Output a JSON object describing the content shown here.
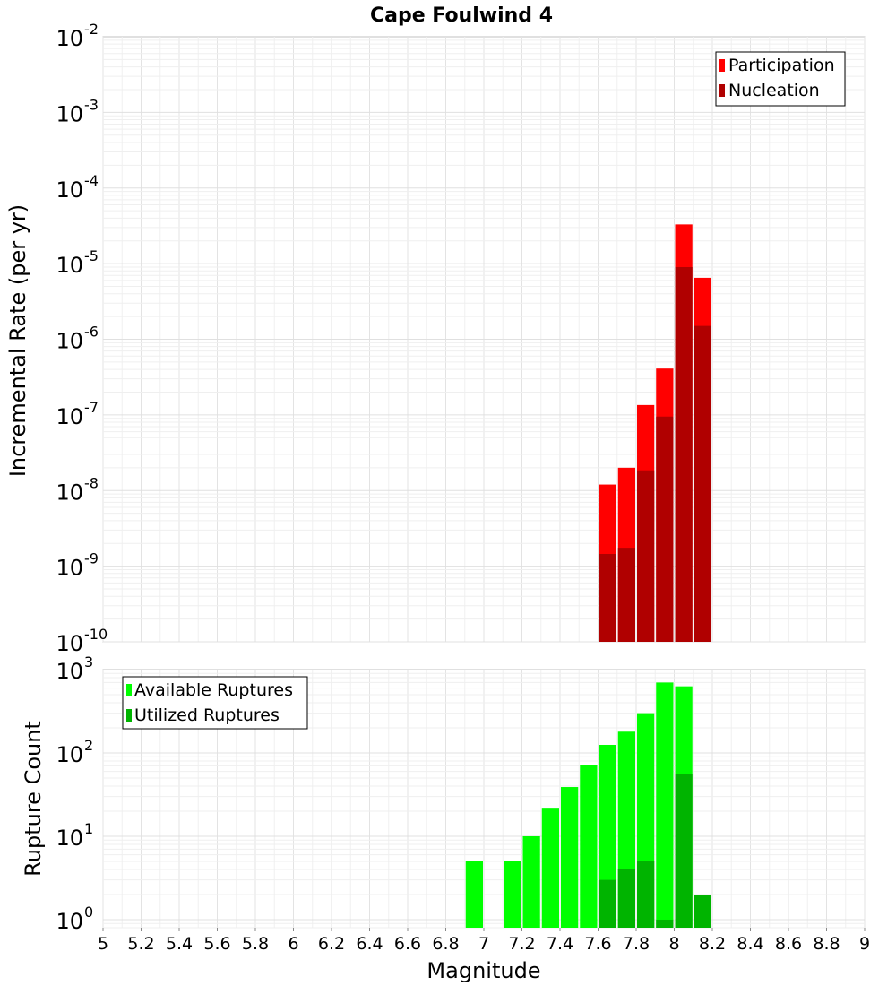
{
  "chart_data": [
    {
      "type": "bar",
      "title": "Cape Foulwind 4",
      "xlabel": "Magnitude",
      "ylabel": "Incremental Rate (per yr)",
      "yscale": "log",
      "xlim": [
        5,
        9
      ],
      "ylim": [
        1e-10,
        0.01
      ],
      "y_ticks": [
        {
          "base": "10",
          "exp": "-10",
          "value": 1e-10
        },
        {
          "base": "10",
          "exp": "-9",
          "value": 1e-09
        },
        {
          "base": "10",
          "exp": "-8",
          "value": 1e-08
        },
        {
          "base": "10",
          "exp": "-7",
          "value": 1e-07
        },
        {
          "base": "10",
          "exp": "-6",
          "value": 1e-06
        },
        {
          "base": "10",
          "exp": "-5",
          "value": 1e-05
        },
        {
          "base": "10",
          "exp": "-4",
          "value": 0.0001
        },
        {
          "base": "10",
          "exp": "-3",
          "value": 0.001
        },
        {
          "base": "10",
          "exp": "-2",
          "value": 0.01
        }
      ],
      "grid": true,
      "legend_position": "top-right",
      "bar_width": 0.1,
      "x": [
        7.65,
        7.75,
        7.85,
        7.95,
        8.05,
        8.15
      ],
      "series": [
        {
          "name": "Participation",
          "color": "#ff0000",
          "values": [
            1.2e-08,
            2e-08,
            1.35e-07,
            4.1e-07,
            3.3e-05,
            6.5e-06
          ]
        },
        {
          "name": "Nucleation",
          "color": "#b00000",
          "values": [
            1.45e-09,
            1.75e-09,
            1.85e-08,
            9.5e-08,
            9e-06,
            1.5e-06
          ]
        }
      ]
    },
    {
      "type": "bar",
      "xlabel": "Magnitude",
      "ylabel": "Rupture Count",
      "yscale": "log",
      "xlim": [
        5,
        9
      ],
      "ylim": [
        0.8,
        1000
      ],
      "x_ticks": [
        "5",
        "5.2",
        "5.4",
        "5.6",
        "5.8",
        "6",
        "6.2",
        "6.4",
        "6.6",
        "6.8",
        "7",
        "7.2",
        "7.4",
        "7.6",
        "7.8",
        "8",
        "8.2",
        "8.4",
        "8.6",
        "8.8",
        "9"
      ],
      "y_ticks": [
        {
          "base": "10",
          "exp": "0",
          "value": 1
        },
        {
          "base": "10",
          "exp": "1",
          "value": 10
        },
        {
          "base": "10",
          "exp": "2",
          "value": 100
        },
        {
          "base": "10",
          "exp": "3",
          "value": 1000
        }
      ],
      "grid": true,
      "legend_position": "top-left",
      "bar_width": 0.1,
      "series": [
        {
          "name": "Available Ruptures",
          "color": "#00ff00",
          "x": [
            6.95,
            7.15,
            7.25,
            7.35,
            7.45,
            7.55,
            7.65,
            7.75,
            7.85,
            7.95,
            8.05
          ],
          "values": [
            5,
            5,
            10,
            22,
            39,
            72,
            125,
            180,
            300,
            700,
            630
          ]
        },
        {
          "name": "Utilized Ruptures",
          "color": "#00b400",
          "x": [
            7.65,
            7.75,
            7.85,
            7.95,
            8.05,
            8.15
          ],
          "values": [
            3,
            4,
            5,
            1,
            56,
            2
          ]
        }
      ]
    }
  ]
}
